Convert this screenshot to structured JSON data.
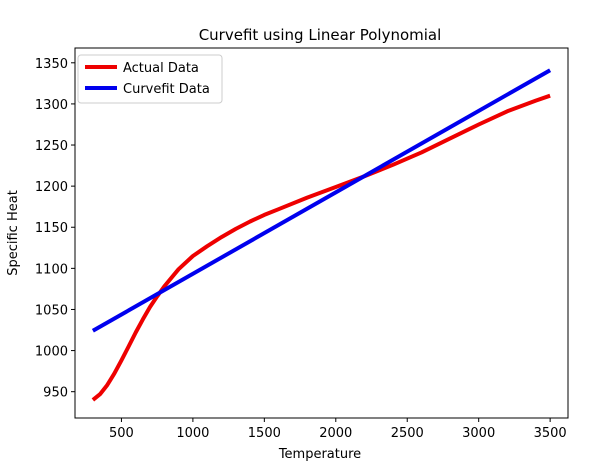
{
  "chart_data": {
    "type": "line",
    "title": "Curvefit using Linear Polynomial",
    "xlabel": "Temperature",
    "ylabel": "Specific Heat",
    "xlim": [
      175,
      3625
    ],
    "ylim": [
      918,
      1368
    ],
    "xticks": [
      500,
      1000,
      1500,
      2000,
      2500,
      3000,
      3500
    ],
    "yticks": [
      950,
      1000,
      1050,
      1100,
      1150,
      1200,
      1250,
      1300,
      1350
    ],
    "grid": false,
    "legend_position": "top-left",
    "series": [
      {
        "name": "Actual Data",
        "color": "#ee0000",
        "x": [
          300,
          350,
          400,
          450,
          500,
          550,
          600,
          650,
          700,
          750,
          800,
          900,
          1000,
          1100,
          1200,
          1300,
          1400,
          1500,
          1600,
          1800,
          2000,
          2200,
          2400,
          2600,
          2800,
          3000,
          3200,
          3400,
          3500
        ],
        "y": [
          940,
          947,
          958,
          972,
          988,
          1005,
          1022,
          1038,
          1053,
          1066,
          1078,
          1099,
          1115,
          1127,
          1138,
          1148,
          1157,
          1165,
          1172,
          1186,
          1199,
          1212,
          1226,
          1241,
          1258,
          1275,
          1291,
          1304,
          1310
        ]
      },
      {
        "name": "Curvefit Data",
        "color": "#0000ee",
        "x": [
          300,
          3500
        ],
        "y": [
          1024,
          1341
        ]
      }
    ]
  }
}
